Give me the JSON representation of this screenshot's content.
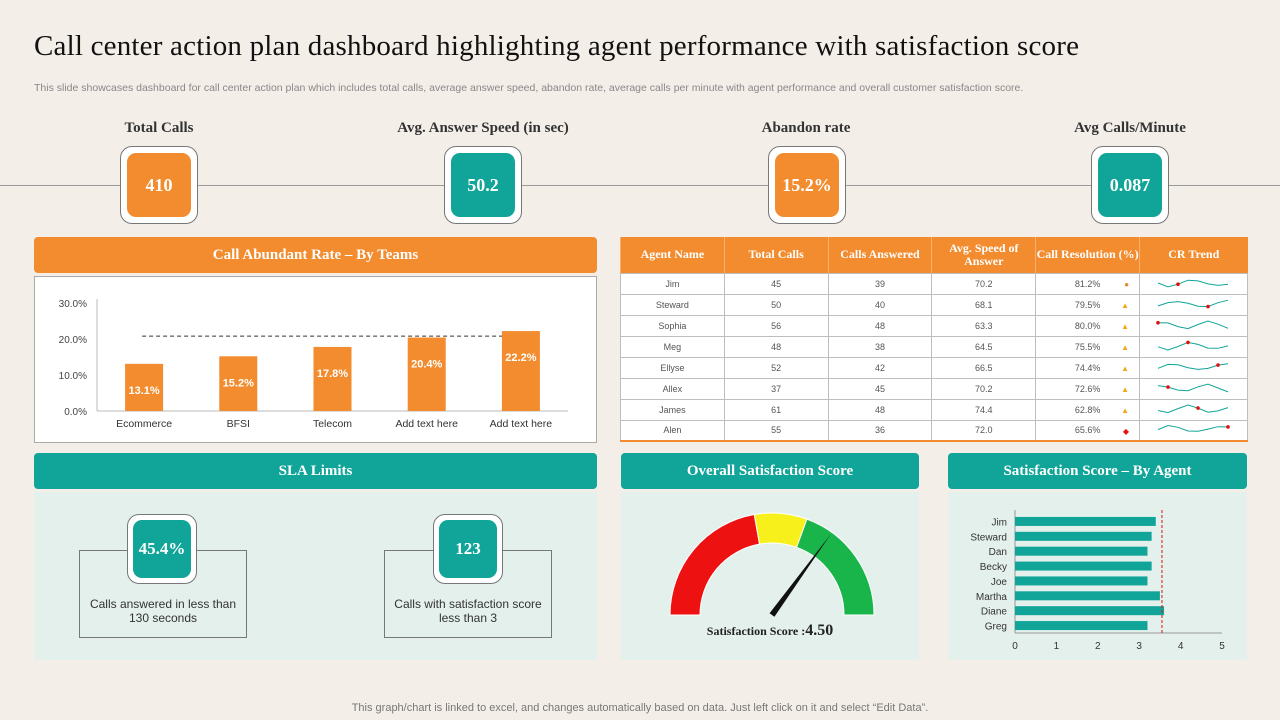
{
  "title": "Call center action plan dashboard highlighting agent performance with satisfaction score",
  "subtitle": "This slide showcases dashboard for call center action plan which includes total calls, average answer speed, abandon rate, average calls per minute with agent performance and overall customer satisfaction score.",
  "kpis": [
    {
      "label": "Total Calls",
      "value": "410"
    },
    {
      "label": "Avg. Answer  Speed (in sec)",
      "value": "50.2"
    },
    {
      "label": "Abandon  rate",
      "value": "15.2%"
    },
    {
      "label": "Avg Calls/Minute",
      "value": "0.087"
    }
  ],
  "sections": {
    "abandon_rate": "Call Abundant  Rate – By Teams",
    "sla": "SLA Limits",
    "overall": "Overall Satisfaction Score",
    "by_agent": "Satisfaction Score – By Agent"
  },
  "table": {
    "headers": [
      "Agent Name",
      "Total Calls",
      "Calls Answered",
      "Avg. Speed of Answer",
      "Call Resolution (%)",
      "CR Trend"
    ],
    "rows": [
      {
        "name": "Jim",
        "total": "45",
        "answered": "39",
        "speed": "70.2",
        "resolution": "81.2%",
        "status": "circle"
      },
      {
        "name": "Steward",
        "total": "50",
        "answered": "40",
        "speed": "68.1",
        "resolution": "79.5%",
        "status": "triangle"
      },
      {
        "name": "Sophia",
        "total": "56",
        "answered": "48",
        "speed": "63.3",
        "resolution": "80.0%",
        "status": "triangle"
      },
      {
        "name": "Meg",
        "total": "48",
        "answered": "38",
        "speed": "64.5",
        "resolution": "75.5%",
        "status": "triangle"
      },
      {
        "name": "Ellyse",
        "total": "52",
        "answered": "42",
        "speed": "66.5",
        "resolution": "74.4%",
        "status": "triangle"
      },
      {
        "name": "Allex",
        "total": "37",
        "answered": "45",
        "speed": "70.2",
        "resolution": "72.6%",
        "status": "triangle"
      },
      {
        "name": "James",
        "total": "61",
        "answered": "48",
        "speed": "74.4",
        "resolution": "62.8%",
        "status": "triangle"
      },
      {
        "name": "Alen",
        "total": "55",
        "answered": "36",
        "speed": "72.0",
        "resolution": "65.6%",
        "status": "diamond"
      }
    ]
  },
  "sla": [
    {
      "value": "45.4%",
      "desc": "Calls answered in less than 130 seconds"
    },
    {
      "value": "123",
      "desc": "Calls with satisfaction score less than 3"
    }
  ],
  "gauge": {
    "label": "Satisfaction Score :",
    "value": "4.50",
    "score": 4.5,
    "max": 5
  },
  "footer": "This graph/chart is linked to excel,  and changes automatically based on data. Just left click on it and select “Edit Data”.",
  "colors": {
    "orange": "#f28c2e",
    "teal": "#10a598",
    "red": "#ee1111",
    "yellow": "#f7f01a",
    "green": "#1ab54a"
  },
  "chart_data": [
    {
      "type": "bar",
      "title": "Call Abundant  Rate – By Teams",
      "categories": [
        "Ecommerce",
        "BFSI",
        "Telecom",
        "Add text here",
        "Add text here"
      ],
      "values": [
        13.1,
        15.2,
        17.8,
        20.4,
        22.2
      ],
      "value_labels": [
        "13.1%",
        "15.2%",
        "17.8%",
        "20.4%",
        "22.2%"
      ],
      "ylim": [
        0,
        30
      ],
      "yticks": [
        "0.0%",
        "10.0%",
        "20.0%",
        "30.0%"
      ],
      "target_line": 20.8
    },
    {
      "type": "bar",
      "orientation": "horizontal",
      "title": "Satisfaction Score – By Agent",
      "categories": [
        "Jim",
        "Steward",
        "Dan",
        "Becky",
        "Joe",
        "Martha",
        "Diane",
        "Greg"
      ],
      "values": [
        3.4,
        3.3,
        3.2,
        3.3,
        3.2,
        3.5,
        3.6,
        3.2
      ],
      "xlim": [
        0,
        5
      ],
      "xticks": [
        "0",
        "1",
        "2",
        "3",
        "4",
        "5"
      ],
      "target_line": 3.55
    }
  ]
}
